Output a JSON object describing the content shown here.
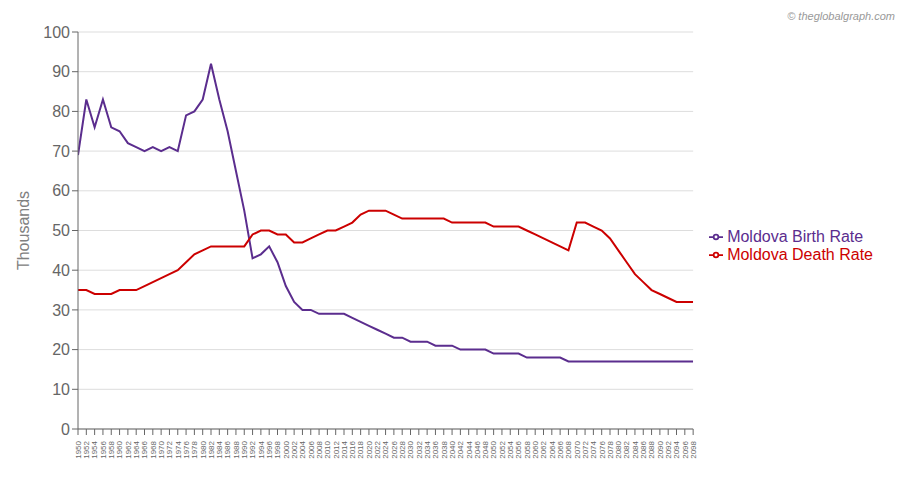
{
  "chart_data": {
    "type": "line",
    "x": [
      1950,
      1952,
      1954,
      1956,
      1958,
      1960,
      1962,
      1964,
      1966,
      1968,
      1970,
      1972,
      1974,
      1976,
      1978,
      1980,
      1982,
      1984,
      1986,
      1988,
      1990,
      1992,
      1994,
      1996,
      1998,
      2000,
      2002,
      2004,
      2006,
      2008,
      2010,
      2012,
      2014,
      2016,
      2018,
      2020,
      2022,
      2024,
      2026,
      2028,
      2030,
      2032,
      2034,
      2036,
      2038,
      2040,
      2042,
      2044,
      2046,
      2048,
      2050,
      2052,
      2054,
      2056,
      2058,
      2060,
      2062,
      2064,
      2066,
      2068,
      2070,
      2072,
      2074,
      2076,
      2078,
      2080,
      2082,
      2084,
      2086,
      2088,
      2090,
      2092,
      2094,
      2096,
      2098
    ],
    "series": [
      {
        "name": "Moldova Birth Rate",
        "color": "#5b2d8e",
        "values": [
          69,
          83,
          76,
          83,
          76,
          75,
          72,
          71,
          70,
          71,
          70,
          71,
          70,
          79,
          80,
          83,
          92,
          83,
          75,
          65,
          55,
          43,
          44,
          46,
          42,
          36,
          32,
          30,
          30,
          29,
          29,
          29,
          29,
          28,
          27,
          26,
          25,
          24,
          23,
          23,
          22,
          22,
          22,
          21,
          21,
          21,
          20,
          20,
          20,
          20,
          19,
          19,
          19,
          19,
          18,
          18,
          18,
          18,
          18,
          17,
          17,
          17,
          17,
          17,
          17,
          17,
          17,
          17,
          17,
          17,
          17,
          17,
          17,
          17,
          17
        ]
      },
      {
        "name": "Moldova Death Rate",
        "color": "#cc0000",
        "values": [
          35,
          35,
          34,
          34,
          34,
          35,
          35,
          35,
          36,
          37,
          38,
          39,
          40,
          42,
          44,
          45,
          46,
          46,
          46,
          46,
          46,
          49,
          50,
          50,
          49,
          49,
          47,
          47,
          48,
          49,
          50,
          50,
          51,
          52,
          54,
          55,
          55,
          55,
          54,
          53,
          53,
          53,
          53,
          53,
          53,
          52,
          52,
          52,
          52,
          52,
          51,
          51,
          51,
          51,
          50,
          49,
          48,
          47,
          46,
          45,
          52,
          52,
          51,
          50,
          48,
          45,
          42,
          39,
          37,
          35,
          34,
          33,
          32,
          32,
          32
        ]
      }
    ],
    "y_label": "Thousands",
    "xlim": [
      1950,
      2098
    ],
    "xticks": [
      1950,
      1952,
      1954,
      1956,
      1958,
      1960,
      1962,
      1964,
      1966,
      1968,
      1970,
      1972,
      1974,
      1976,
      1978,
      1980,
      1982,
      1984,
      1986,
      1988,
      1990,
      1992,
      1994,
      1996,
      1998,
      2000,
      2002,
      2004,
      2006,
      2008,
      2010,
      2012,
      2014,
      2016,
      2018,
      2020,
      2022,
      2024,
      2026,
      2028,
      2030,
      2032,
      2034,
      2036,
      2038,
      2040,
      2042,
      2044,
      2046,
      2048,
      2050,
      2052,
      2054,
      2056,
      2058,
      2060,
      2062,
      2064,
      2066,
      2068,
      2070,
      2072,
      2074,
      2076,
      2078,
      2080,
      2082,
      2084,
      2086,
      2088,
      2090,
      2092,
      2094,
      2096,
      2098
    ],
    "ylim": [
      0,
      100
    ],
    "yticks": [
      0,
      10,
      20,
      30,
      40,
      50,
      60,
      70,
      80,
      90,
      100
    ],
    "grid": true,
    "legend": "right",
    "annotations": [
      "© theglobalgraph.com"
    ]
  }
}
